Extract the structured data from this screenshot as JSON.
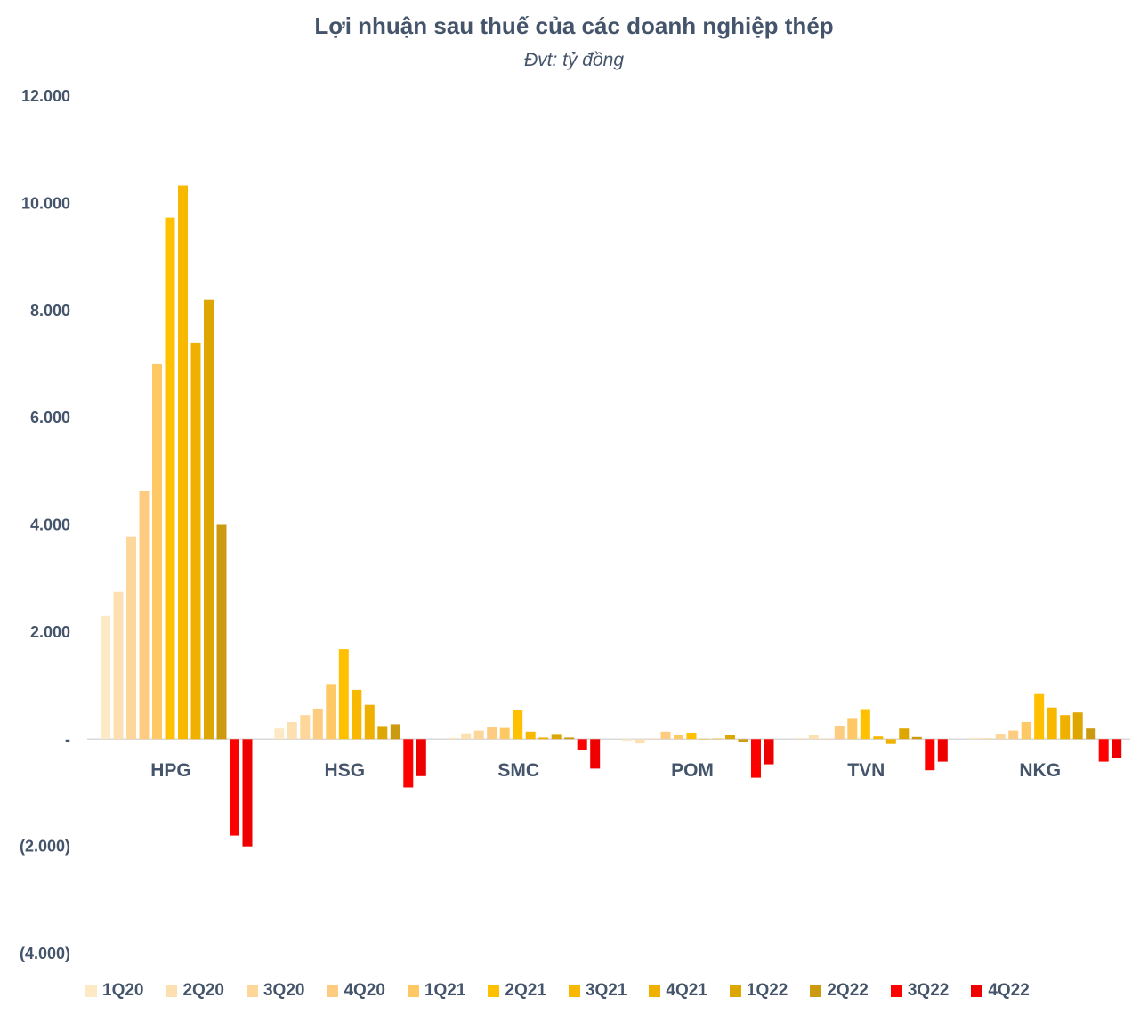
{
  "chart_data": {
    "type": "bar",
    "title": "Lợi nhuận sau thuế của các doanh nghiệp thép",
    "subtitle": "Đvt: tỷ đồng",
    "ylim": [
      -4000,
      12000
    ],
    "yticks": [
      12000,
      10000,
      8000,
      6000,
      4000,
      2000,
      0,
      -2000,
      -4000
    ],
    "ytick_labels": [
      "12.000",
      "10.000",
      "8.000",
      "6.000",
      "4.000",
      "2.000",
      "-",
      "(2.000)",
      "(4.000)"
    ],
    "grid": false,
    "legend_position": "bottom",
    "categories": [
      "HPG",
      "HSG",
      "SMC",
      "POM",
      "TVN",
      "NKG"
    ],
    "series": [
      {
        "name": "1Q20",
        "color": "#fde9c6",
        "values": [
          2300,
          200,
          25,
          -30,
          20,
          25
        ]
      },
      {
        "name": "2Q20",
        "color": "#fde0b2",
        "values": [
          2750,
          320,
          110,
          -80,
          70,
          20
        ]
      },
      {
        "name": "3Q20",
        "color": "#fdd69a",
        "values": [
          3780,
          450,
          160,
          5,
          5,
          100
        ]
      },
      {
        "name": "4Q20",
        "color": "#fdcc80",
        "values": [
          4640,
          570,
          220,
          140,
          240,
          160
        ]
      },
      {
        "name": "1Q21",
        "color": "#fec964",
        "values": [
          7000,
          1030,
          210,
          70,
          380,
          320
        ]
      },
      {
        "name": "2Q21",
        "color": "#ffc000",
        "values": [
          9730,
          1680,
          540,
          120,
          560,
          840
        ]
      },
      {
        "name": "3Q21",
        "color": "#f9b800",
        "values": [
          10330,
          920,
          140,
          5,
          50,
          590
        ]
      },
      {
        "name": "4Q21",
        "color": "#f0b000",
        "values": [
          7400,
          640,
          30,
          10,
          -90,
          450
        ]
      },
      {
        "name": "1Q22",
        "color": "#dea600",
        "values": [
          8200,
          230,
          80,
          70,
          200,
          500
        ]
      },
      {
        "name": "2Q22",
        "color": "#cc9a0e",
        "values": [
          4000,
          280,
          30,
          -50,
          40,
          200
        ]
      },
      {
        "name": "3Q22",
        "color": "#ff0000",
        "values": [
          -1800,
          -900,
          -210,
          -720,
          -580,
          -420
        ]
      },
      {
        "name": "4Q22",
        "color": "#ee0000",
        "values": [
          -2000,
          -690,
          -550,
          -470,
          -420,
          -360
        ]
      }
    ]
  }
}
